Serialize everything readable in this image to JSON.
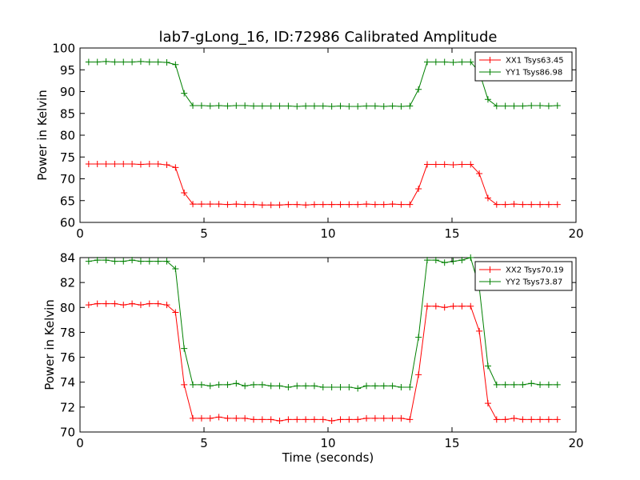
{
  "chart_data": [
    {
      "type": "line",
      "title": "lab7-gLong_16, ID:72986 Calibrated Amplitude",
      "xlabel": "",
      "ylabel": "Power in Kelvin",
      "xlim": [
        0,
        20
      ],
      "ylim": [
        60,
        100
      ],
      "xticks": [
        "0",
        "5",
        "10",
        "15",
        "20"
      ],
      "yticks": [
        "60",
        "65",
        "70",
        "75",
        "80",
        "85",
        "90",
        "95",
        "100"
      ],
      "grid": false,
      "legend_position": "top-right",
      "x": [
        0.35,
        0.7,
        1.05,
        1.4,
        1.75,
        2.1,
        2.45,
        2.8,
        3.15,
        3.5,
        3.85,
        4.2,
        4.55,
        4.9,
        5.25,
        5.6,
        5.95,
        6.3,
        6.65,
        7.0,
        7.35,
        7.7,
        8.05,
        8.4,
        8.75,
        9.1,
        9.45,
        9.8,
        10.15,
        10.5,
        10.85,
        11.2,
        11.55,
        11.9,
        12.25,
        12.6,
        12.95,
        13.3,
        13.65,
        14.0,
        14.35,
        14.7,
        15.05,
        15.4,
        15.75,
        16.1,
        16.45,
        16.8,
        17.15,
        17.5,
        17.85,
        18.2,
        18.55,
        18.9,
        19.25
      ],
      "series": [
        {
          "name": "XX1 Tsys63.45",
          "color": "#ff0000",
          "values": [
            73.4,
            73.4,
            73.4,
            73.4,
            73.4,
            73.4,
            73.3,
            73.4,
            73.4,
            73.2,
            72.6,
            66.8,
            64.2,
            64.2,
            64.2,
            64.2,
            64.1,
            64.2,
            64.1,
            64.1,
            64.0,
            64.0,
            64.0,
            64.1,
            64.1,
            64.0,
            64.1,
            64.1,
            64.1,
            64.1,
            64.1,
            64.1,
            64.2,
            64.1,
            64.1,
            64.2,
            64.1,
            64.1,
            67.7,
            73.3,
            73.3,
            73.3,
            73.2,
            73.3,
            73.3,
            71.2,
            65.6,
            64.1,
            64.1,
            64.2,
            64.1,
            64.1,
            64.1,
            64.1,
            64.1
          ]
        },
        {
          "name": "YY1 Tsys86.98",
          "color": "#008000",
          "values": [
            96.8,
            96.8,
            96.9,
            96.8,
            96.8,
            96.8,
            96.9,
            96.8,
            96.8,
            96.7,
            96.2,
            89.6,
            86.8,
            86.8,
            86.7,
            86.8,
            86.7,
            86.8,
            86.8,
            86.7,
            86.7,
            86.7,
            86.7,
            86.7,
            86.6,
            86.7,
            86.7,
            86.7,
            86.6,
            86.7,
            86.6,
            86.6,
            86.7,
            86.7,
            86.6,
            86.7,
            86.6,
            86.7,
            90.5,
            96.8,
            96.8,
            96.8,
            96.7,
            96.8,
            96.8,
            94.5,
            88.2,
            86.7,
            86.7,
            86.7,
            86.7,
            86.8,
            86.8,
            86.7,
            86.8
          ]
        }
      ]
    },
    {
      "type": "line",
      "title": "",
      "xlabel": "Time (seconds)",
      "ylabel": "Power in Kelvin",
      "xlim": [
        0,
        20
      ],
      "ylim": [
        70,
        84
      ],
      "xticks": [
        "0",
        "5",
        "10",
        "15",
        "20"
      ],
      "yticks": [
        "70",
        "72",
        "74",
        "76",
        "78",
        "80",
        "82",
        "84"
      ],
      "grid": false,
      "legend_position": "top-right",
      "x": [
        0.35,
        0.7,
        1.05,
        1.4,
        1.75,
        2.1,
        2.45,
        2.8,
        3.15,
        3.5,
        3.85,
        4.2,
        4.55,
        4.9,
        5.25,
        5.6,
        5.95,
        6.3,
        6.65,
        7.0,
        7.35,
        7.7,
        8.05,
        8.4,
        8.75,
        9.1,
        9.45,
        9.8,
        10.15,
        10.5,
        10.85,
        11.2,
        11.55,
        11.9,
        12.25,
        12.6,
        12.95,
        13.3,
        13.65,
        14.0,
        14.35,
        14.7,
        15.05,
        15.4,
        15.75,
        16.1,
        16.45,
        16.8,
        17.15,
        17.5,
        17.85,
        18.2,
        18.55,
        18.9,
        19.25
      ],
      "series": [
        {
          "name": "XX2 Tsys70.19",
          "color": "#ff0000",
          "values": [
            80.2,
            80.3,
            80.3,
            80.3,
            80.2,
            80.3,
            80.2,
            80.3,
            80.3,
            80.2,
            79.6,
            73.8,
            71.1,
            71.1,
            71.1,
            71.2,
            71.1,
            71.1,
            71.1,
            71.0,
            71.0,
            71.0,
            70.9,
            71.0,
            71.0,
            71.0,
            71.0,
            71.0,
            70.9,
            71.0,
            71.0,
            71.0,
            71.1,
            71.1,
            71.1,
            71.1,
            71.1,
            71.0,
            74.6,
            80.1,
            80.1,
            80.0,
            80.1,
            80.1,
            80.1,
            78.1,
            72.3,
            71.0,
            71.0,
            71.1,
            71.0,
            71.0,
            71.0,
            71.0,
            71.0
          ]
        },
        {
          "name": "YY2 Tsys73.87",
          "color": "#008000",
          "values": [
            83.7,
            83.8,
            83.8,
            83.7,
            83.7,
            83.8,
            83.7,
            83.7,
            83.7,
            83.7,
            83.1,
            76.7,
            73.8,
            73.8,
            73.7,
            73.8,
            73.8,
            73.9,
            73.7,
            73.8,
            73.8,
            73.7,
            73.7,
            73.6,
            73.7,
            73.7,
            73.7,
            73.6,
            73.6,
            73.6,
            73.6,
            73.5,
            73.7,
            73.7,
            73.7,
            73.7,
            73.6,
            73.6,
            77.6,
            83.8,
            83.8,
            83.6,
            83.7,
            83.8,
            84.0,
            81.6,
            75.3,
            73.8,
            73.8,
            73.8,
            73.8,
            73.9,
            73.8,
            73.8,
            73.8
          ]
        }
      ]
    }
  ]
}
